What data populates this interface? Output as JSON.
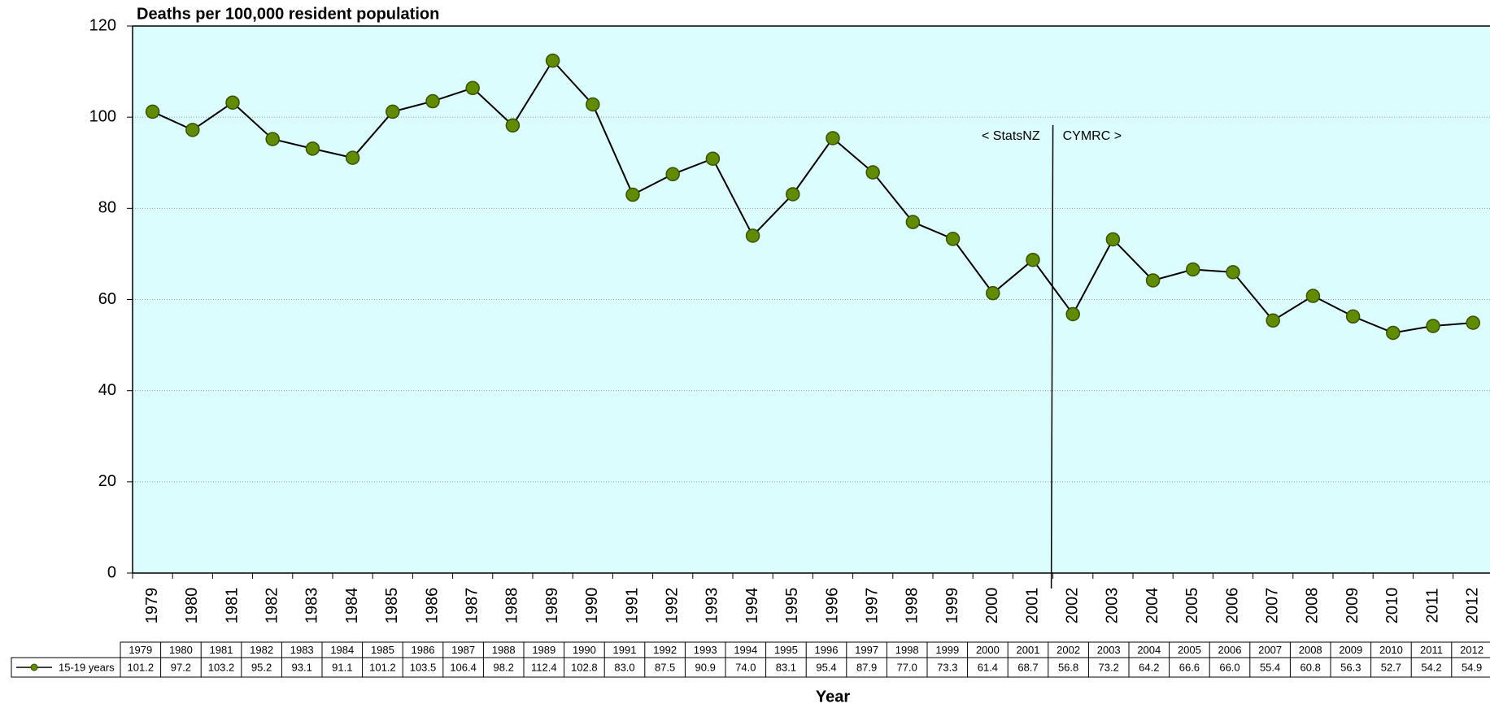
{
  "chart_data": {
    "type": "line",
    "title": "Deaths per 100,000 resident population",
    "x_label": "Year",
    "categories": [
      "1979",
      "1980",
      "1981",
      "1982",
      "1983",
      "1984",
      "1985",
      "1986",
      "1987",
      "1988",
      "1989",
      "1990",
      "1991",
      "1992",
      "1993",
      "1994",
      "1995",
      "1996",
      "1997",
      "1998",
      "1999",
      "2000",
      "2001",
      "2002",
      "2003",
      "2004",
      "2005",
      "2006",
      "2007",
      "2008",
      "2009",
      "2010",
      "2011",
      "2012"
    ],
    "series": [
      {
        "name": "15-19 years",
        "color": "#5f8c00",
        "values": [
          101.2,
          97.2,
          103.2,
          95.2,
          93.1,
          91.1,
          101.2,
          103.5,
          106.4,
          98.2,
          112.4,
          102.8,
          83.0,
          87.5,
          90.9,
          74.0,
          83.1,
          95.4,
          87.9,
          77.0,
          73.3,
          61.4,
          68.7,
          56.8,
          73.2,
          64.2,
          66.6,
          66.0,
          55.4,
          60.8,
          56.3,
          52.7,
          54.2,
          54.9
        ],
        "value_labels": [
          "101.2",
          "97.2",
          "103.2",
          "95.2",
          "93.1",
          "91.1",
          "101.2",
          "103.5",
          "106.4",
          "98.2",
          "112.4",
          "102.8",
          "83.0",
          "87.5",
          "90.9",
          "74.0",
          "83.1",
          "95.4",
          "87.9",
          "77.0",
          "73.3",
          "61.4",
          "68.7",
          "56.8",
          "73.2",
          "64.2",
          "66.6",
          "66.0",
          "55.4",
          "60.8",
          "56.3",
          "52.7",
          "54.2",
          "54.9"
        ]
      }
    ],
    "ylim": [
      0,
      120
    ],
    "yticks": [
      0,
      20,
      40,
      60,
      80,
      100,
      120
    ],
    "grid": true,
    "annotations": [
      "< StatsNZ",
      "CYMRC >"
    ]
  }
}
